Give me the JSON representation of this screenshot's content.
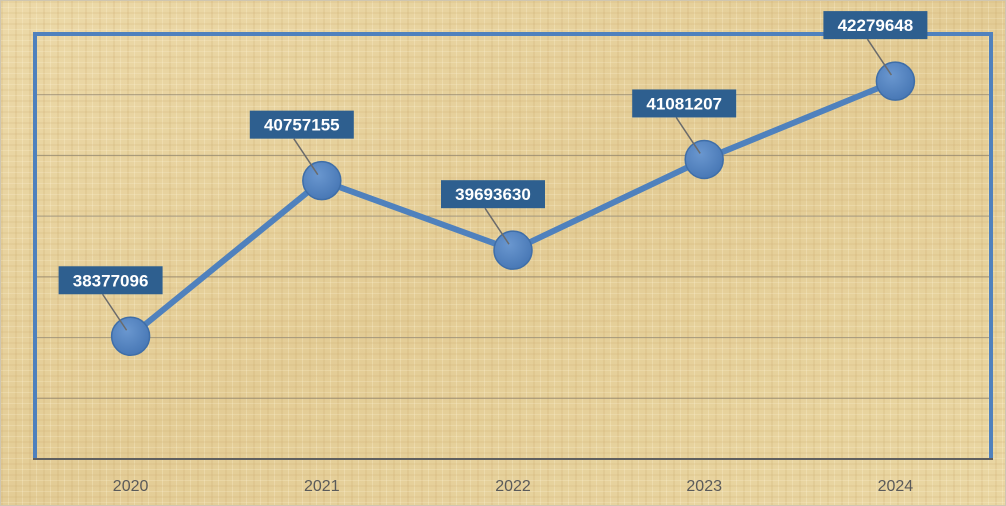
{
  "chart_data": {
    "type": "line",
    "title": "",
    "xlabel": "",
    "ylabel": "",
    "categories": [
      "2020",
      "2021",
      "2022",
      "2023",
      "2024"
    ],
    "series": [
      {
        "values": [
          38377096,
          40757155,
          39693630,
          41081207,
          42279648
        ]
      }
    ],
    "data_labels": [
      "38377096",
      "40757155",
      "39693630",
      "41081207",
      "42279648"
    ],
    "ylim": [
      36500000,
      43000000
    ],
    "grid": true,
    "legend": "none",
    "colors": {
      "line": "#4f81bd",
      "marker": "#4f81bd",
      "frame": "#4f81bd",
      "label_box": "#2e5f8f",
      "label_text": "#ffffff",
      "gridline": "#8a7f6a",
      "background": "#e9d6a6"
    }
  }
}
